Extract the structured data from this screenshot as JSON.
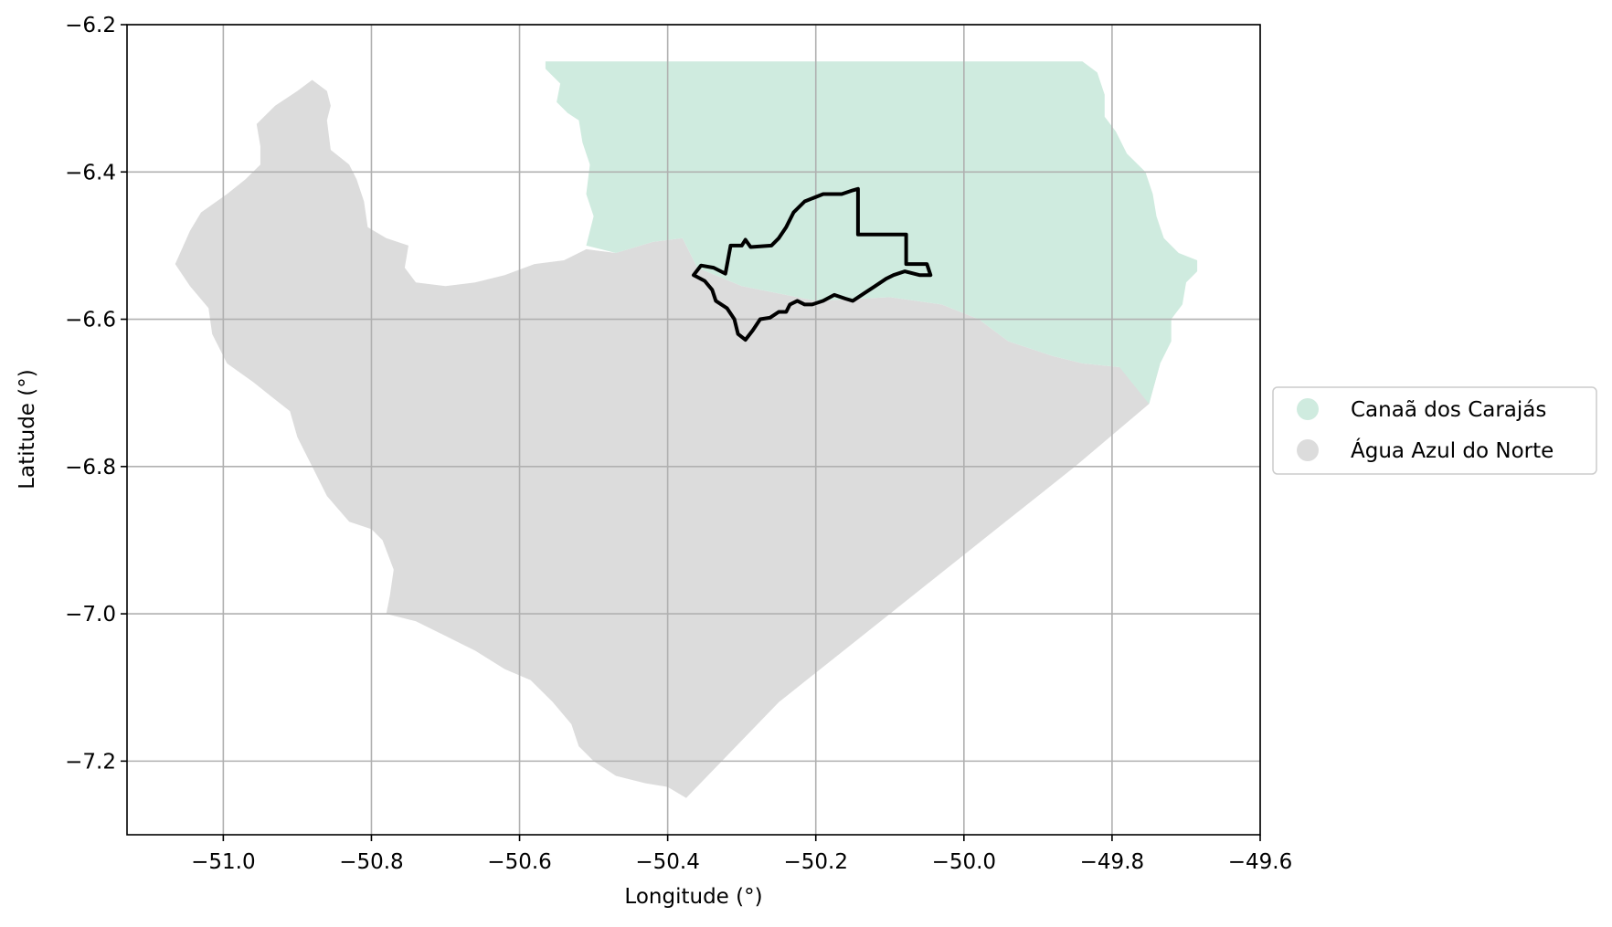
{
  "chart_data": {
    "type": "map",
    "xlabel": "Longitude (°)",
    "ylabel": "Latitude (°)",
    "xlim": [
      -51.13,
      -49.6
    ],
    "ylim": [
      -7.3,
      -6.2
    ],
    "x_ticks": [
      -51.0,
      -50.8,
      -50.6,
      -50.4,
      -50.2,
      -50.0,
      -49.8,
      -49.6
    ],
    "x_tick_labels": [
      "−51.0",
      "−50.8",
      "−50.6",
      "−50.4",
      "−50.2",
      "−50.0",
      "−49.8",
      "−49.6"
    ],
    "y_ticks": [
      -6.2,
      -6.4,
      -6.6,
      -6.8,
      -7.0,
      -7.2
    ],
    "y_tick_labels": [
      "−6.2",
      "−6.4",
      "−6.6",
      "−6.8",
      "−7.0",
      "−7.2"
    ],
    "grid": true,
    "legend_position": "right",
    "series": [
      {
        "name": "Canaã dos Carajás",
        "color": "#cfebdf",
        "polygon": [
          [
            -50.565,
            -6.25
          ],
          [
            -49.84,
            -6.25
          ],
          [
            -49.82,
            -6.265
          ],
          [
            -49.81,
            -6.295
          ],
          [
            -49.81,
            -6.325
          ],
          [
            -49.795,
            -6.345
          ],
          [
            -49.78,
            -6.375
          ],
          [
            -49.755,
            -6.4
          ],
          [
            -49.745,
            -6.43
          ],
          [
            -49.74,
            -6.46
          ],
          [
            -49.73,
            -6.49
          ],
          [
            -49.71,
            -6.51
          ],
          [
            -49.685,
            -6.52
          ],
          [
            -49.685,
            -6.535
          ],
          [
            -49.7,
            -6.55
          ],
          [
            -49.705,
            -6.58
          ],
          [
            -49.72,
            -6.6
          ],
          [
            -49.72,
            -6.63
          ],
          [
            -49.735,
            -6.66
          ],
          [
            -49.75,
            -6.715
          ],
          [
            -49.79,
            -6.665
          ],
          [
            -49.84,
            -6.66
          ],
          [
            -49.88,
            -6.65
          ],
          [
            -49.94,
            -6.63
          ],
          [
            -49.98,
            -6.6
          ],
          [
            -50.03,
            -6.58
          ],
          [
            -50.1,
            -6.57
          ],
          [
            -50.2,
            -6.575
          ],
          [
            -50.3,
            -6.555
          ],
          [
            -50.36,
            -6.53
          ],
          [
            -50.38,
            -6.49
          ],
          [
            -50.42,
            -6.495
          ],
          [
            -50.47,
            -6.51
          ],
          [
            -50.49,
            -6.505
          ],
          [
            -50.51,
            -6.5
          ],
          [
            -50.5,
            -6.46
          ],
          [
            -50.51,
            -6.43
          ],
          [
            -50.505,
            -6.39
          ],
          [
            -50.515,
            -6.36
          ],
          [
            -50.52,
            -6.33
          ],
          [
            -50.535,
            -6.32
          ],
          [
            -50.55,
            -6.305
          ],
          [
            -50.545,
            -6.28
          ],
          [
            -50.565,
            -6.26
          ]
        ]
      },
      {
        "name": "Água Azul do Norte",
        "color": "#dcdcdc",
        "polygon": [
          [
            -50.88,
            -6.275
          ],
          [
            -50.9,
            -6.29
          ],
          [
            -50.93,
            -6.31
          ],
          [
            -50.955,
            -6.335
          ],
          [
            -50.95,
            -6.365
          ],
          [
            -50.95,
            -6.39
          ],
          [
            -50.97,
            -6.41
          ],
          [
            -50.995,
            -6.43
          ],
          [
            -51.03,
            -6.455
          ],
          [
            -51.045,
            -6.48
          ],
          [
            -51.065,
            -6.525
          ],
          [
            -51.045,
            -6.555
          ],
          [
            -51.02,
            -6.585
          ],
          [
            -51.015,
            -6.62
          ],
          [
            -50.995,
            -6.66
          ],
          [
            -50.96,
            -6.685
          ],
          [
            -50.935,
            -6.705
          ],
          [
            -50.91,
            -6.725
          ],
          [
            -50.9,
            -6.76
          ],
          [
            -50.88,
            -6.8
          ],
          [
            -50.86,
            -6.84
          ],
          [
            -50.83,
            -6.875
          ],
          [
            -50.8,
            -6.885
          ],
          [
            -50.785,
            -6.9
          ],
          [
            -50.77,
            -6.94
          ],
          [
            -50.775,
            -6.975
          ],
          [
            -50.78,
            -7.0
          ],
          [
            -50.74,
            -7.01
          ],
          [
            -50.7,
            -7.03
          ],
          [
            -50.66,
            -7.05
          ],
          [
            -50.62,
            -7.075
          ],
          [
            -50.585,
            -7.09
          ],
          [
            -50.555,
            -7.12
          ],
          [
            -50.53,
            -7.15
          ],
          [
            -50.52,
            -7.18
          ],
          [
            -50.5,
            -7.2
          ],
          [
            -50.47,
            -7.22
          ],
          [
            -50.43,
            -7.23
          ],
          [
            -50.4,
            -7.235
          ],
          [
            -50.375,
            -7.25
          ],
          [
            -50.25,
            -7.12
          ],
          [
            -50.1,
            -7.0
          ],
          [
            -49.95,
            -6.88
          ],
          [
            -49.85,
            -6.8
          ],
          [
            -49.75,
            -6.715
          ],
          [
            -49.735,
            -6.66
          ],
          [
            -49.79,
            -6.665
          ],
          [
            -49.84,
            -6.66
          ],
          [
            -49.88,
            -6.65
          ],
          [
            -49.94,
            -6.63
          ],
          [
            -49.98,
            -6.6
          ],
          [
            -50.03,
            -6.58
          ],
          [
            -50.1,
            -6.57
          ],
          [
            -50.2,
            -6.575
          ],
          [
            -50.3,
            -6.555
          ],
          [
            -50.36,
            -6.53
          ],
          [
            -50.38,
            -6.49
          ],
          [
            -50.42,
            -6.495
          ],
          [
            -50.47,
            -6.51
          ],
          [
            -50.51,
            -6.505
          ],
          [
            -50.54,
            -6.52
          ],
          [
            -50.58,
            -6.525
          ],
          [
            -50.62,
            -6.54
          ],
          [
            -50.66,
            -6.55
          ],
          [
            -50.7,
            -6.555
          ],
          [
            -50.74,
            -6.55
          ],
          [
            -50.755,
            -6.53
          ],
          [
            -50.75,
            -6.5
          ],
          [
            -50.78,
            -6.49
          ],
          [
            -50.805,
            -6.475
          ],
          [
            -50.81,
            -6.44
          ],
          [
            -50.82,
            -6.41
          ],
          [
            -50.83,
            -6.39
          ],
          [
            -50.855,
            -6.37
          ],
          [
            -50.86,
            -6.33
          ],
          [
            -50.855,
            -6.31
          ],
          [
            -50.86,
            -6.29
          ]
        ]
      }
    ],
    "outline": {
      "color": "#000000",
      "polygon": [
        [
          -50.143,
          -6.423
        ],
        [
          -50.143,
          -6.485
        ],
        [
          -50.078,
          -6.485
        ],
        [
          -50.078,
          -6.525
        ],
        [
          -50.05,
          -6.525
        ],
        [
          -50.045,
          -6.54
        ],
        [
          -50.06,
          -6.54
        ],
        [
          -50.08,
          -6.535
        ],
        [
          -50.095,
          -6.54
        ],
        [
          -50.105,
          -6.545
        ],
        [
          -50.12,
          -6.555
        ],
        [
          -50.135,
          -6.565
        ],
        [
          -50.15,
          -6.575
        ],
        [
          -50.16,
          -6.572
        ],
        [
          -50.175,
          -6.567
        ],
        [
          -50.19,
          -6.575
        ],
        [
          -50.205,
          -6.58
        ],
        [
          -50.215,
          -6.58
        ],
        [
          -50.225,
          -6.575
        ],
        [
          -50.235,
          -6.58
        ],
        [
          -50.24,
          -6.59
        ],
        [
          -50.25,
          -6.59
        ],
        [
          -50.262,
          -6.598
        ],
        [
          -50.275,
          -6.6
        ],
        [
          -50.285,
          -6.615
        ],
        [
          -50.295,
          -6.628
        ],
        [
          -50.305,
          -6.62
        ],
        [
          -50.31,
          -6.6
        ],
        [
          -50.32,
          -6.585
        ],
        [
          -50.335,
          -6.575
        ],
        [
          -50.34,
          -6.56
        ],
        [
          -50.35,
          -6.548
        ],
        [
          -50.365,
          -6.54
        ],
        [
          -50.355,
          -6.527
        ],
        [
          -50.338,
          -6.53
        ],
        [
          -50.322,
          -6.538
        ],
        [
          -50.315,
          -6.5
        ],
        [
          -50.3,
          -6.5
        ],
        [
          -50.295,
          -6.492
        ],
        [
          -50.288,
          -6.502
        ],
        [
          -50.26,
          -6.5
        ],
        [
          -50.25,
          -6.49
        ],
        [
          -50.24,
          -6.475
        ],
        [
          -50.23,
          -6.455
        ],
        [
          -50.215,
          -6.44
        ],
        [
          -50.19,
          -6.43
        ],
        [
          -50.165,
          -6.43
        ],
        [
          -50.15,
          -6.425
        ]
      ]
    },
    "legend": [
      {
        "label": "Canaã dos Carajás",
        "color": "#cfebdf"
      },
      {
        "label": "Água Azul do Norte",
        "color": "#dcdcdc"
      }
    ]
  }
}
